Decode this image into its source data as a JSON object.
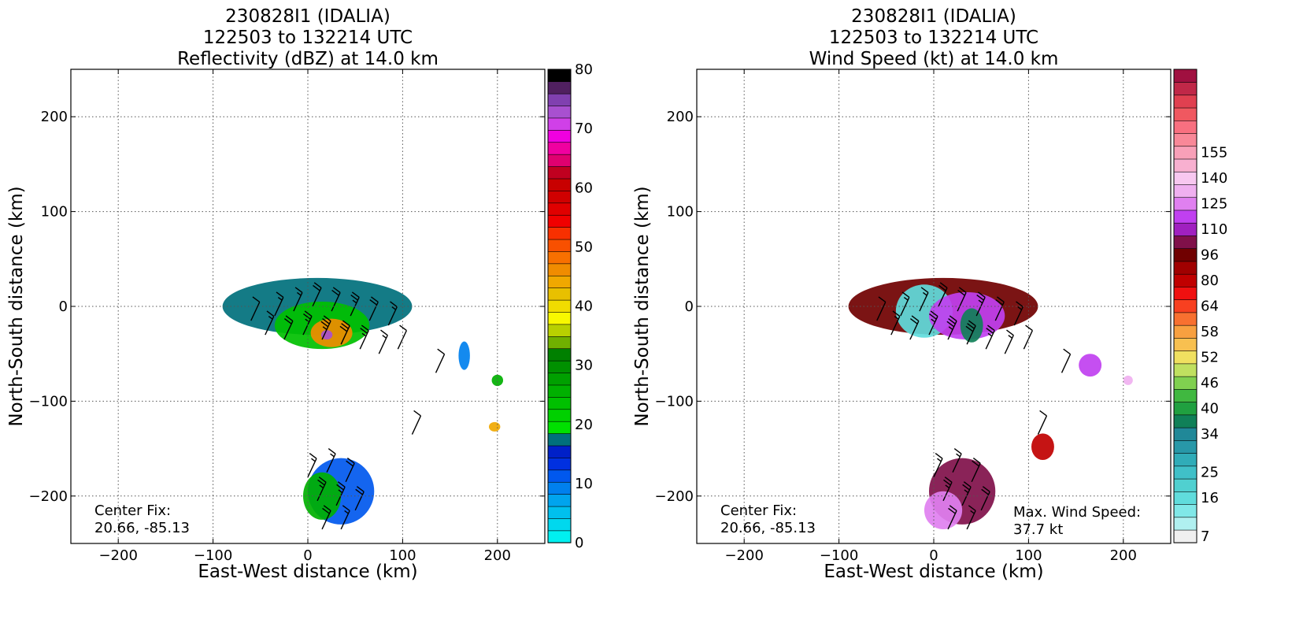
{
  "chart_data": [
    {
      "type": "heatmap",
      "title_lines": [
        "230828I1 (IDALIA)",
        "122503 to 132214 UTC",
        "Reflectivity (dBZ) at 14.0 km"
      ],
      "xlabel": "East-West distance (km)",
      "ylabel": "North-South distance (km)",
      "xlim": [
        -250,
        250
      ],
      "ylim": [
        -250,
        250
      ],
      "xticks": [
        -200,
        -100,
        0,
        100,
        200
      ],
      "yticks": [
        -200,
        -100,
        0,
        100,
        200
      ],
      "grid": true,
      "colorbar": {
        "min": 0,
        "max": 80,
        "tick_values": [
          0,
          10,
          20,
          30,
          40,
          50,
          60,
          70,
          80
        ],
        "colors": [
          "#00f0f0",
          "#00d8ee",
          "#00c0ee",
          "#00a4ee",
          "#0080ee",
          "#0058ee",
          "#0030e0",
          "#0020c8",
          "#00707c",
          "#00e000",
          "#00d000",
          "#00c000",
          "#00b000",
          "#00a000",
          "#009000",
          "#008000",
          "#70b000",
          "#b8d000",
          "#f8f800",
          "#f0dc00",
          "#e8c000",
          "#f0a800",
          "#f08c00",
          "#f87000",
          "#f85000",
          "#f83000",
          "#f00000",
          "#e00000",
          "#d00000",
          "#c80000",
          "#c00020",
          "#e00070",
          "#f000a0",
          "#f000e0",
          "#d040e8",
          "#a850d0",
          "#8040b0",
          "#502060",
          "#000000"
        ]
      },
      "annotations": [
        {
          "lines": [
            "Center Fix:",
            "20.66, -85.13"
          ]
        }
      ],
      "echo_regions": [
        {
          "x": 10,
          "y": 0,
          "rx": 100,
          "ry": 30,
          "value": 8
        },
        {
          "x": 15,
          "y": -20,
          "rx": 50,
          "ry": 25,
          "value": 11
        },
        {
          "x": 25,
          "y": -28,
          "rx": 22,
          "ry": 15,
          "value": 22
        },
        {
          "x": 20,
          "y": -30,
          "rx": 6,
          "ry": 5,
          "value": 35
        },
        {
          "x": 35,
          "y": -195,
          "rx": 35,
          "ry": 35,
          "value": 5
        },
        {
          "x": 15,
          "y": -200,
          "rx": 20,
          "ry": 25,
          "value": 12
        },
        {
          "x": 165,
          "y": -52,
          "rx": 6,
          "ry": 15,
          "value": 4
        },
        {
          "x": 200,
          "y": -78,
          "rx": 6,
          "ry": 6,
          "value": 12
        },
        {
          "x": 197,
          "y": -127,
          "rx": 6,
          "ry": 5,
          "value": 21
        }
      ]
    },
    {
      "type": "heatmap",
      "title_lines": [
        "230828I1 (IDALIA)",
        "122503 to 132214 UTC",
        "Wind Speed (kt) at 14.0 km"
      ],
      "xlabel": "East-West distance (km)",
      "ylabel": "North-South distance (km)",
      "xlim": [
        -250,
        250
      ],
      "ylim": [
        -250,
        250
      ],
      "xticks": [
        -200,
        -100,
        0,
        100,
        200
      ],
      "yticks": [
        -200,
        -100,
        0,
        100,
        200
      ],
      "grid": true,
      "colorbar": {
        "tick_values": [
          7,
          16,
          25,
          34,
          40,
          46,
          52,
          58,
          64,
          80,
          96,
          110,
          125,
          140,
          155
        ],
        "tick_positions": [
          0,
          3,
          5,
          8,
          10,
          12,
          14,
          16,
          18,
          20,
          22,
          24,
          26,
          28,
          30
        ],
        "colors": [
          "#f0f0f0",
          "#b0f0f0",
          "#80e8e8",
          "#60dcdc",
          "#50d0d0",
          "#40c0c8",
          "#30acb8",
          "#2898a8",
          "#208898",
          "#108058",
          "#20a040",
          "#40b840",
          "#80d050",
          "#c0e060",
          "#f0e060",
          "#f8c050",
          "#f8a040",
          "#f87030",
          "#f84020",
          "#f01010",
          "#c00000",
          "#a00000",
          "#700000",
          "#80104a",
          "#a020c0",
          "#c040f0",
          "#e080f0",
          "#f0b0f0",
          "#f8c8f0",
          "#f8b0d0",
          "#f8a0b8",
          "#f88898",
          "#f87080",
          "#f05860",
          "#e04050",
          "#c02848",
          "#a01040"
        ]
      },
      "annotations": [
        {
          "lines": [
            "Center Fix:",
            "20.66, -85.13"
          ]
        },
        {
          "lines": [
            "Max. Wind Speed:",
            "37.7 kt"
          ]
        }
      ],
      "echo_regions": [
        {
          "x": 10,
          "y": 0,
          "rx": 100,
          "ry": 30,
          "value": 22
        },
        {
          "x": -10,
          "y": -5,
          "rx": 30,
          "ry": 28,
          "value": 3
        },
        {
          "x": 35,
          "y": -10,
          "rx": 40,
          "ry": 25,
          "value": 25
        },
        {
          "x": 40,
          "y": -20,
          "rx": 12,
          "ry": 18,
          "value": 9
        },
        {
          "x": 30,
          "y": -195,
          "rx": 35,
          "ry": 35,
          "value": 23
        },
        {
          "x": 10,
          "y": -215,
          "rx": 20,
          "ry": 20,
          "value": 26
        },
        {
          "x": 165,
          "y": -62,
          "rx": 12,
          "ry": 12,
          "value": 25
        },
        {
          "x": 205,
          "y": -78,
          "rx": 5,
          "ry": 5,
          "value": 27
        },
        {
          "x": 115,
          "y": -148,
          "rx": 12,
          "ry": 14,
          "value": 20
        }
      ]
    }
  ],
  "barbs": [
    {
      "x": -60,
      "y": -15,
      "speed": 10
    },
    {
      "x": -35,
      "y": -10,
      "speed": 15
    },
    {
      "x": -15,
      "y": -5,
      "speed": 15
    },
    {
      "x": 5,
      "y": 0,
      "speed": 20
    },
    {
      "x": 25,
      "y": -5,
      "speed": 20
    },
    {
      "x": 45,
      "y": -10,
      "speed": 25
    },
    {
      "x": 65,
      "y": -15,
      "speed": 20
    },
    {
      "x": 85,
      "y": -20,
      "speed": 15
    },
    {
      "x": -45,
      "y": -30,
      "speed": 15
    },
    {
      "x": -25,
      "y": -35,
      "speed": 20
    },
    {
      "x": -5,
      "y": -30,
      "speed": 25
    },
    {
      "x": 15,
      "y": -35,
      "speed": 35
    },
    {
      "x": 35,
      "y": -40,
      "speed": 30
    },
    {
      "x": 55,
      "y": -45,
      "speed": 25
    },
    {
      "x": 75,
      "y": -50,
      "speed": 15
    },
    {
      "x": 95,
      "y": -45,
      "speed": 10
    },
    {
      "x": 0,
      "y": -180,
      "speed": 15
    },
    {
      "x": 20,
      "y": -175,
      "speed": 15
    },
    {
      "x": 40,
      "y": -185,
      "speed": 20
    },
    {
      "x": 10,
      "y": -205,
      "speed": 25
    },
    {
      "x": 30,
      "y": -210,
      "speed": 25
    },
    {
      "x": 50,
      "y": -215,
      "speed": 20
    },
    {
      "x": 15,
      "y": -235,
      "speed": 20
    },
    {
      "x": 35,
      "y": -235,
      "speed": 15
    },
    {
      "x": 135,
      "y": -70,
      "speed": 10
    },
    {
      "x": 110,
      "y": -135,
      "speed": 10
    }
  ]
}
